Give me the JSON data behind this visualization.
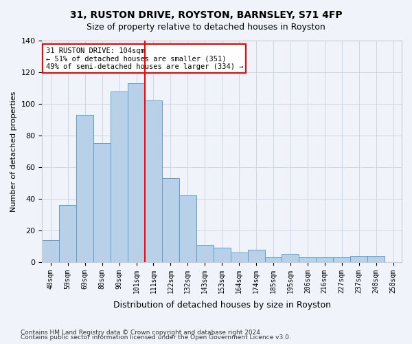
{
  "title1": "31, RUSTON DRIVE, ROYSTON, BARNSLEY, S71 4FP",
  "title2": "Size of property relative to detached houses in Royston",
  "xlabel": "Distribution of detached houses by size in Royston",
  "ylabel": "Number of detached properties",
  "categories": [
    "48sqm",
    "59sqm",
    "69sqm",
    "80sqm",
    "90sqm",
    "101sqm",
    "111sqm",
    "122sqm",
    "132sqm",
    "143sqm",
    "153sqm",
    "164sqm",
    "174sqm",
    "185sqm",
    "195sqm",
    "206sqm",
    "216sqm",
    "227sqm",
    "237sqm",
    "248sqm",
    "258sqm"
  ],
  "values": [
    14,
    36,
    93,
    75,
    108,
    113,
    102,
    53,
    42,
    11,
    9,
    6,
    8,
    3,
    5,
    3,
    3,
    3,
    4,
    4,
    0
  ],
  "bar_color": "#b8d0e8",
  "bar_edge_color": "#5a9fd4",
  "annotation_line1": "31 RUSTON DRIVE: 104sqm",
  "annotation_line2": "← 51% of detached houses are smaller (351)",
  "annotation_line3": "49% of semi-detached houses are larger (334) →",
  "annotation_box_color": "white",
  "annotation_box_edge_color": "red",
  "vline_color": "red",
  "vline_x_index": 5.5,
  "ylim": [
    0,
    140
  ],
  "yticks": [
    0,
    20,
    40,
    60,
    80,
    100,
    120,
    140
  ],
  "grid_color": "#d0d8e8",
  "footnote1": "Contains HM Land Registry data © Crown copyright and database right 2024.",
  "footnote2": "Contains public sector information licensed under the Open Government Licence v3.0.",
  "bg_color": "#f0f4fa"
}
